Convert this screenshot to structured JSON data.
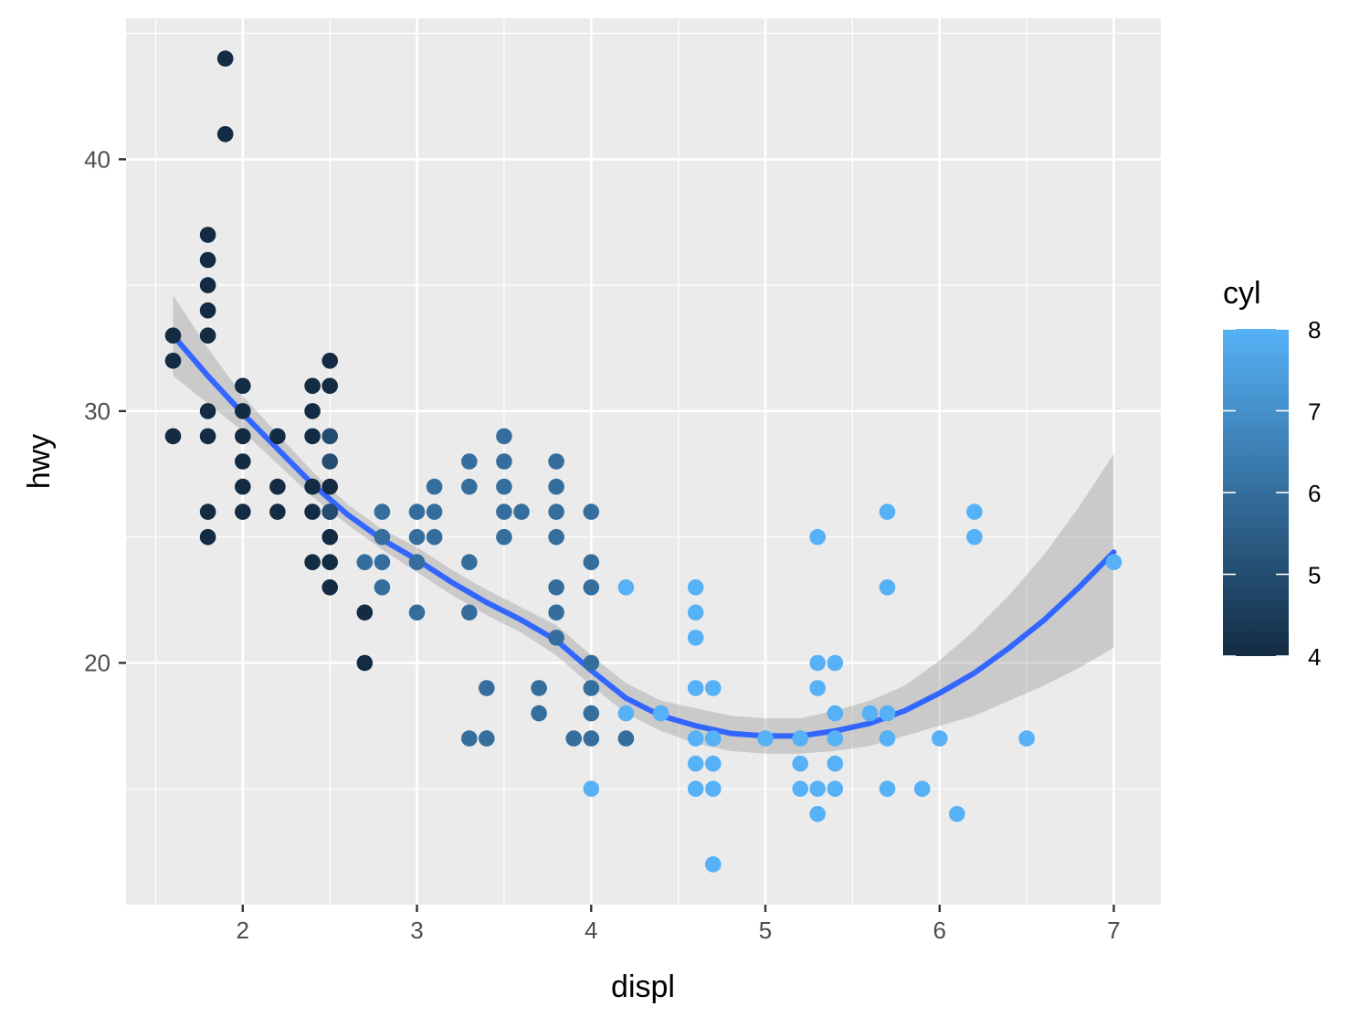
{
  "chart_data": {
    "type": "scatter",
    "xlabel": "displ",
    "ylabel": "hwy",
    "xlim": [
      1.33,
      7.27
    ],
    "ylim": [
      10.4,
      45.6
    ],
    "x_ticks": [
      2,
      3,
      4,
      5,
      6,
      7
    ],
    "y_ticks": [
      20,
      30,
      40
    ],
    "grid": true,
    "legend": {
      "title": "cyl",
      "position": "right",
      "type": "colorbar",
      "range": [
        4,
        8
      ],
      "ticks": [
        4,
        5,
        6,
        7,
        8
      ],
      "low_color": "#132B43",
      "high_color": "#56B1F7"
    },
    "points": [
      {
        "x": 1.6,
        "y": 33,
        "cyl": 4
      },
      {
        "x": 1.6,
        "y": 32,
        "cyl": 4
      },
      {
        "x": 1.6,
        "y": 29,
        "cyl": 4
      },
      {
        "x": 1.8,
        "y": 37,
        "cyl": 4
      },
      {
        "x": 1.8,
        "y": 36,
        "cyl": 4
      },
      {
        "x": 1.8,
        "y": 35,
        "cyl": 4
      },
      {
        "x": 1.8,
        "y": 34,
        "cyl": 4
      },
      {
        "x": 1.8,
        "y": 33,
        "cyl": 4
      },
      {
        "x": 1.8,
        "y": 30,
        "cyl": 4
      },
      {
        "x": 1.8,
        "y": 29,
        "cyl": 4
      },
      {
        "x": 1.8,
        "y": 26,
        "cyl": 4
      },
      {
        "x": 1.8,
        "y": 25,
        "cyl": 4
      },
      {
        "x": 1.9,
        "y": 44,
        "cyl": 4
      },
      {
        "x": 1.9,
        "y": 41,
        "cyl": 4
      },
      {
        "x": 2.0,
        "y": 31,
        "cyl": 4
      },
      {
        "x": 2.0,
        "y": 30,
        "cyl": 4
      },
      {
        "x": 2.0,
        "y": 29,
        "cyl": 4
      },
      {
        "x": 2.0,
        "y": 28,
        "cyl": 4
      },
      {
        "x": 2.0,
        "y": 27,
        "cyl": 4
      },
      {
        "x": 2.0,
        "y": 26,
        "cyl": 4
      },
      {
        "x": 2.2,
        "y": 29,
        "cyl": 4
      },
      {
        "x": 2.2,
        "y": 27,
        "cyl": 4
      },
      {
        "x": 2.2,
        "y": 26,
        "cyl": 4
      },
      {
        "x": 2.4,
        "y": 31,
        "cyl": 4
      },
      {
        "x": 2.4,
        "y": 30,
        "cyl": 4
      },
      {
        "x": 2.4,
        "y": 29,
        "cyl": 4
      },
      {
        "x": 2.4,
        "y": 27,
        "cyl": 4
      },
      {
        "x": 2.4,
        "y": 26,
        "cyl": 4
      },
      {
        "x": 2.4,
        "y": 24,
        "cyl": 4
      },
      {
        "x": 2.5,
        "y": 32,
        "cyl": 4
      },
      {
        "x": 2.5,
        "y": 31,
        "cyl": 4
      },
      {
        "x": 2.5,
        "y": 29,
        "cyl": 5
      },
      {
        "x": 2.5,
        "y": 28,
        "cyl": 5
      },
      {
        "x": 2.5,
        "y": 27,
        "cyl": 4
      },
      {
        "x": 2.5,
        "y": 26,
        "cyl": 4
      },
      {
        "x": 2.5,
        "y": 25,
        "cyl": 4
      },
      {
        "x": 2.5,
        "y": 24,
        "cyl": 4
      },
      {
        "x": 2.5,
        "y": 23,
        "cyl": 4
      },
      {
        "x": 2.5,
        "y": 26,
        "cyl": 5
      },
      {
        "x": 2.7,
        "y": 24,
        "cyl": 6
      },
      {
        "x": 2.7,
        "y": 22,
        "cyl": 4
      },
      {
        "x": 2.7,
        "y": 20,
        "cyl": 4
      },
      {
        "x": 2.8,
        "y": 26,
        "cyl": 6
      },
      {
        "x": 2.8,
        "y": 25,
        "cyl": 6
      },
      {
        "x": 2.8,
        "y": 24,
        "cyl": 6
      },
      {
        "x": 2.8,
        "y": 23,
        "cyl": 6
      },
      {
        "x": 3.0,
        "y": 26,
        "cyl": 6
      },
      {
        "x": 3.0,
        "y": 25,
        "cyl": 6
      },
      {
        "x": 3.0,
        "y": 24,
        "cyl": 6
      },
      {
        "x": 3.0,
        "y": 22,
        "cyl": 6
      },
      {
        "x": 3.1,
        "y": 27,
        "cyl": 6
      },
      {
        "x": 3.1,
        "y": 26,
        "cyl": 6
      },
      {
        "x": 3.1,
        "y": 25,
        "cyl": 6
      },
      {
        "x": 3.3,
        "y": 28,
        "cyl": 6
      },
      {
        "x": 3.3,
        "y": 27,
        "cyl": 6
      },
      {
        "x": 3.3,
        "y": 24,
        "cyl": 6
      },
      {
        "x": 3.3,
        "y": 22,
        "cyl": 6
      },
      {
        "x": 3.3,
        "y": 17,
        "cyl": 6
      },
      {
        "x": 3.4,
        "y": 19,
        "cyl": 6
      },
      {
        "x": 3.4,
        "y": 17,
        "cyl": 6
      },
      {
        "x": 3.5,
        "y": 29,
        "cyl": 6
      },
      {
        "x": 3.5,
        "y": 28,
        "cyl": 6
      },
      {
        "x": 3.5,
        "y": 27,
        "cyl": 6
      },
      {
        "x": 3.5,
        "y": 26,
        "cyl": 6
      },
      {
        "x": 3.5,
        "y": 25,
        "cyl": 6
      },
      {
        "x": 3.6,
        "y": 26,
        "cyl": 6
      },
      {
        "x": 3.7,
        "y": 19,
        "cyl": 6
      },
      {
        "x": 3.7,
        "y": 18,
        "cyl": 6
      },
      {
        "x": 3.8,
        "y": 28,
        "cyl": 6
      },
      {
        "x": 3.8,
        "y": 27,
        "cyl": 6
      },
      {
        "x": 3.8,
        "y": 26,
        "cyl": 6
      },
      {
        "x": 3.8,
        "y": 25,
        "cyl": 6
      },
      {
        "x": 3.8,
        "y": 23,
        "cyl": 6
      },
      {
        "x": 3.8,
        "y": 22,
        "cyl": 6
      },
      {
        "x": 3.8,
        "y": 21,
        "cyl": 6
      },
      {
        "x": 3.9,
        "y": 17,
        "cyl": 6
      },
      {
        "x": 4.0,
        "y": 26,
        "cyl": 6
      },
      {
        "x": 4.0,
        "y": 24,
        "cyl": 6
      },
      {
        "x": 4.0,
        "y": 23,
        "cyl": 6
      },
      {
        "x": 4.0,
        "y": 20,
        "cyl": 6
      },
      {
        "x": 4.0,
        "y": 19,
        "cyl": 6
      },
      {
        "x": 4.0,
        "y": 18,
        "cyl": 6
      },
      {
        "x": 4.0,
        "y": 17,
        "cyl": 6
      },
      {
        "x": 4.0,
        "y": 15,
        "cyl": 8
      },
      {
        "x": 4.2,
        "y": 23,
        "cyl": 8
      },
      {
        "x": 4.2,
        "y": 18,
        "cyl": 8
      },
      {
        "x": 4.2,
        "y": 17,
        "cyl": 6
      },
      {
        "x": 4.4,
        "y": 18,
        "cyl": 8
      },
      {
        "x": 4.6,
        "y": 23,
        "cyl": 8
      },
      {
        "x": 4.6,
        "y": 22,
        "cyl": 8
      },
      {
        "x": 4.6,
        "y": 21,
        "cyl": 8
      },
      {
        "x": 4.6,
        "y": 19,
        "cyl": 8
      },
      {
        "x": 4.6,
        "y": 17,
        "cyl": 8
      },
      {
        "x": 4.6,
        "y": 16,
        "cyl": 8
      },
      {
        "x": 4.6,
        "y": 15,
        "cyl": 8
      },
      {
        "x": 4.7,
        "y": 19,
        "cyl": 8
      },
      {
        "x": 4.7,
        "y": 17,
        "cyl": 8
      },
      {
        "x": 4.7,
        "y": 16,
        "cyl": 8
      },
      {
        "x": 4.7,
        "y": 15,
        "cyl": 8
      },
      {
        "x": 4.7,
        "y": 12,
        "cyl": 8
      },
      {
        "x": 5.0,
        "y": 17,
        "cyl": 8
      },
      {
        "x": 5.2,
        "y": 17,
        "cyl": 8
      },
      {
        "x": 5.2,
        "y": 16,
        "cyl": 8
      },
      {
        "x": 5.2,
        "y": 15,
        "cyl": 8
      },
      {
        "x": 5.3,
        "y": 25,
        "cyl": 8
      },
      {
        "x": 5.3,
        "y": 20,
        "cyl": 8
      },
      {
        "x": 5.3,
        "y": 19,
        "cyl": 8
      },
      {
        "x": 5.3,
        "y": 15,
        "cyl": 8
      },
      {
        "x": 5.3,
        "y": 14,
        "cyl": 8
      },
      {
        "x": 5.4,
        "y": 20,
        "cyl": 8
      },
      {
        "x": 5.4,
        "y": 18,
        "cyl": 8
      },
      {
        "x": 5.4,
        "y": 17,
        "cyl": 8
      },
      {
        "x": 5.4,
        "y": 16,
        "cyl": 8
      },
      {
        "x": 5.4,
        "y": 15,
        "cyl": 8
      },
      {
        "x": 5.6,
        "y": 18,
        "cyl": 8
      },
      {
        "x": 5.7,
        "y": 26,
        "cyl": 8
      },
      {
        "x": 5.7,
        "y": 23,
        "cyl": 8
      },
      {
        "x": 5.7,
        "y": 18,
        "cyl": 8
      },
      {
        "x": 5.7,
        "y": 17,
        "cyl": 8
      },
      {
        "x": 5.7,
        "y": 15,
        "cyl": 8
      },
      {
        "x": 5.9,
        "y": 15,
        "cyl": 8
      },
      {
        "x": 6.0,
        "y": 17,
        "cyl": 8
      },
      {
        "x": 6.1,
        "y": 14,
        "cyl": 8
      },
      {
        "x": 6.2,
        "y": 26,
        "cyl": 8
      },
      {
        "x": 6.2,
        "y": 25,
        "cyl": 8
      },
      {
        "x": 6.5,
        "y": 17,
        "cyl": 8
      },
      {
        "x": 7.0,
        "y": 24,
        "cyl": 8
      }
    ],
    "smooth": {
      "method": "loess",
      "color": "#3366FF",
      "band_color": "#999999",
      "x": [
        1.6,
        1.8,
        2.0,
        2.2,
        2.4,
        2.6,
        2.8,
        3.0,
        3.2,
        3.4,
        3.6,
        3.8,
        4.0,
        4.2,
        4.4,
        4.6,
        4.8,
        5.0,
        5.2,
        5.4,
        5.6,
        5.8,
        6.0,
        6.2,
        6.4,
        6.6,
        6.8,
        7.0
      ],
      "y": [
        33.0,
        31.4,
        29.9,
        28.5,
        27.1,
        25.9,
        24.9,
        24.1,
        23.2,
        22.4,
        21.7,
        20.9,
        19.7,
        18.6,
        17.9,
        17.5,
        17.2,
        17.1,
        17.1,
        17.3,
        17.6,
        18.1,
        18.8,
        19.6,
        20.6,
        21.7,
        23.0,
        24.4
      ],
      "lower": [
        31.4,
        30.3,
        29.2,
        27.9,
        26.6,
        25.5,
        24.5,
        23.6,
        22.7,
        21.9,
        21.2,
        20.3,
        19.1,
        18.0,
        17.3,
        16.8,
        16.5,
        16.4,
        16.4,
        16.5,
        16.7,
        17.1,
        17.5,
        17.9,
        18.5,
        19.1,
        19.8,
        20.6
      ],
      "upper": [
        34.6,
        32.5,
        30.6,
        29.1,
        27.6,
        26.3,
        25.3,
        24.6,
        23.7,
        22.9,
        22.2,
        21.5,
        20.3,
        19.2,
        18.5,
        18.2,
        17.9,
        17.8,
        17.8,
        18.1,
        18.5,
        19.1,
        20.1,
        21.3,
        22.7,
        24.3,
        26.2,
        28.3
      ]
    }
  }
}
